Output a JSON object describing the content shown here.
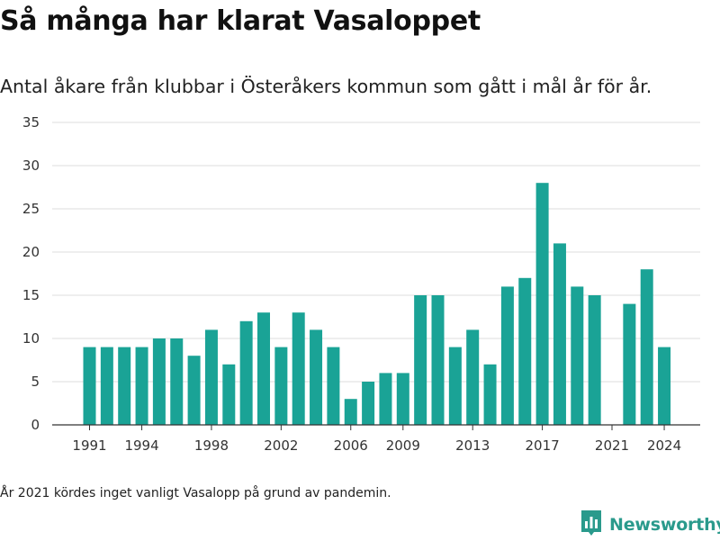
{
  "header": {
    "title": "Så många har klarat Vasaloppet",
    "subtitle": "Antal åkare från klubbar i Österåkers kommun som gått i mål år för år."
  },
  "chart_data": {
    "type": "bar",
    "title": "Så många har klarat Vasaloppet",
    "subtitle": "Antal åkare från klubbar i Österåkers kommun som gått i mål år för år.",
    "xlabel": "",
    "ylabel": "",
    "x": [
      1991,
      1992,
      1993,
      1994,
      1995,
      1996,
      1997,
      1998,
      1999,
      2000,
      2001,
      2002,
      2003,
      2004,
      2005,
      2006,
      2007,
      2008,
      2009,
      2010,
      2011,
      2012,
      2013,
      2014,
      2015,
      2016,
      2017,
      2018,
      2019,
      2020,
      2021,
      2022,
      2023,
      2024
    ],
    "values": [
      9,
      9,
      9,
      9,
      10,
      10,
      8,
      11,
      7,
      12,
      13,
      9,
      13,
      11,
      9,
      3,
      5,
      6,
      6,
      15,
      15,
      9,
      11,
      7,
      16,
      17,
      28,
      21,
      16,
      15,
      null,
      14,
      18,
      9
    ],
    "ylim": [
      0,
      35
    ],
    "y_ticks": [
      0,
      5,
      10,
      15,
      20,
      25,
      30,
      35
    ],
    "x_ticks": [
      1991,
      1994,
      1998,
      2002,
      2006,
      2009,
      2013,
      2017,
      2021,
      2024
    ],
    "grid": true,
    "bar_color": "#1aa396"
  },
  "footnote": "År 2021 kördes inget vanligt Vasalopp på grund av pandemin.",
  "brand": {
    "name": "Newsworthy",
    "icon": "newsworthy-logo-icon",
    "color": "#2a9a8c"
  }
}
